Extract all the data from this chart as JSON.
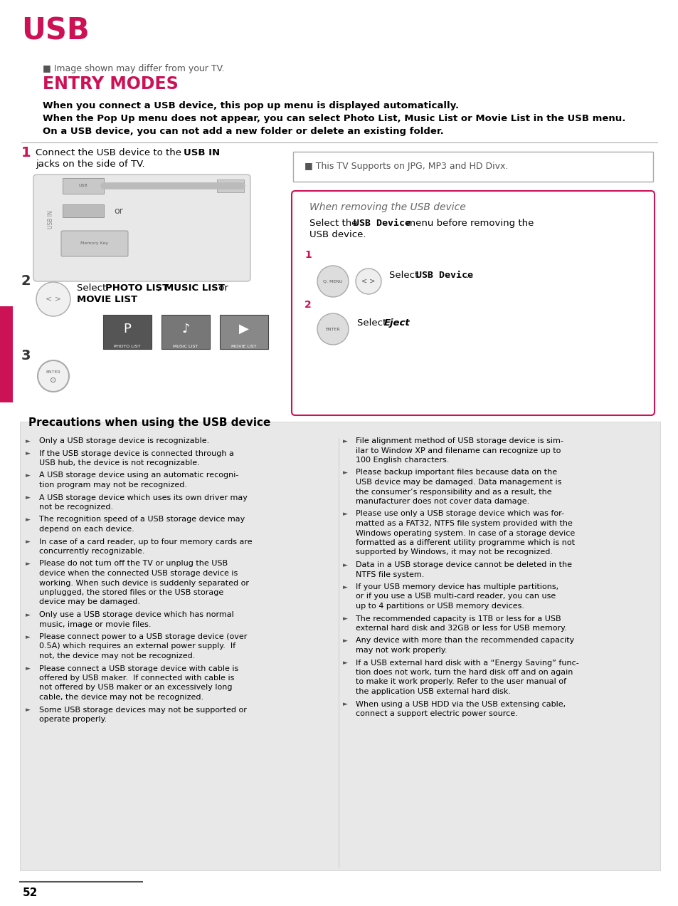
{
  "bg_color": "#ffffff",
  "page_num": "52",
  "usb_title": "USB",
  "usb_title_color": "#cc1155",
  "image_note": "■ Image shown may differ from your TV.",
  "entry_modes_title": "ENTRY MODES",
  "entry_modes_color": "#cc1155",
  "body_text_1": "When you connect a USB device, this pop up menu is displayed automatically.",
  "body_text_2": "When the Pop Up menu does not appear, you can select Photo List, Music List or Movie List in the USB menu.",
  "body_text_3": "On a USB device, you can not add a new folder or delete an existing folder.",
  "tv_supports": "■ This TV Supports on JPG, MP3 and HD Divx.",
  "when_removing_title": "When removing the USB device",
  "precautions_title": "Precautions when using the USB device",
  "left_bullets": [
    "Only a USB storage device is recognizable.",
    "If the USB storage device is connected through a\nUSB hub, the device is not recognizable.",
    "A USB storage device using an automatic recogni-\ntion program may not be recognized.",
    "A USB storage device which uses its own driver may\nnot be recognized.",
    "The recognition speed of a USB storage device may\ndepend on each device.",
    "In case of a card reader, up to four memory cards are\nconcurrently recognizable.",
    "Please do not turn off the TV or unplug the USB\ndevice when the connected USB storage device is\nworking. When such device is suddenly separated or\nunplugged, the stored files or the USB storage\ndevice may be damaged.",
    "Only use a USB storage device which has normal\nmusic, image or movie files.",
    "Please connect power to a USB storage device (over\n0.5A) which requires an external power supply.  If\nnot, the device may not be recognized.",
    "Please connect a USB storage device with cable is\noffered by USB maker.  If connected with cable is\nnot offered by USB maker or an excessively long\ncable, the device may not be recognized.",
    "Some USB storage devices may not be supported or\noperate properly."
  ],
  "right_bullets": [
    "File alignment method of USB storage device is sim-\nilar to Window XP and filename can recognize up to\n100 English characters.",
    "Please backup important files because data on the\nUSB device may be damaged. Data management is\nthe consumer’s responsibility and as a result, the\nmanufacturer does not cover data damage.",
    "Please use only a USB storage device which was for-\nmatted as a FAT32, NTFS file system provided with the\nWindows operating system. In case of a storage device\nformatted as a different utility programme which is not\nsupported by Windows, it may not be recognized.",
    "Data in a USB storage device cannot be deleted in the\nNTFS file system.",
    "If your USB memory device has multiple partitions,\nor if you use a USB multi-card reader, you can use\nup to 4 partitions or USB memory devices.",
    "The recommended capacity is 1TB or less for a USB\nexternal hard disk and 32GB or less for USB memory.",
    "Any device with more than the recommended capacity\nmay not work properly.",
    "If a USB external hard disk with a “Energy Saving” func-\ntion does not work, turn the hard disk off and on again\nto make it work properly. Refer to the user manual of\nthe application USB external hard disk.",
    "When using a USB HDD via the USB extensing cable,\nconnect a support electric power source."
  ]
}
